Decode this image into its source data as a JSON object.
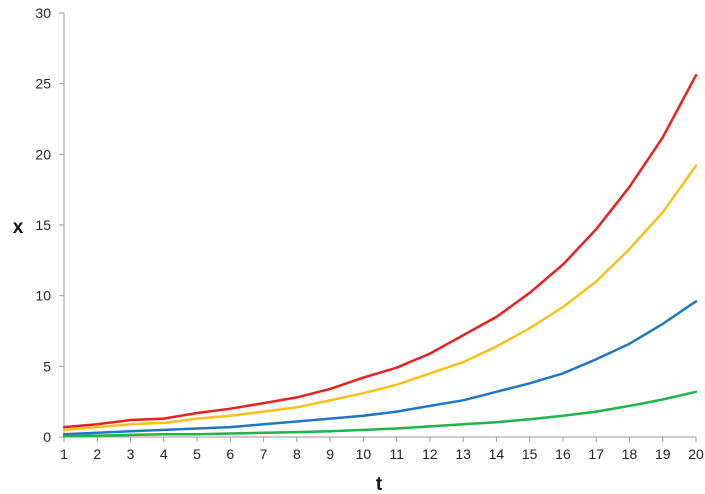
{
  "chart_data": {
    "type": "line",
    "title": "",
    "xlabel": "t",
    "ylabel": "x",
    "x": [
      1,
      2,
      3,
      4,
      5,
      6,
      7,
      8,
      9,
      10,
      11,
      12,
      13,
      14,
      15,
      16,
      17,
      18,
      19,
      20
    ],
    "xlim": [
      1,
      20
    ],
    "ylim": [
      0,
      30
    ],
    "yticks": [
      0,
      5,
      10,
      15,
      20,
      25,
      30
    ],
    "grid": false,
    "legend": "none",
    "series": [
      {
        "color": "#e8211f",
        "values": [
          0.7,
          0.9,
          1.2,
          1.3,
          1.7,
          2.0,
          2.4,
          2.8,
          3.4,
          4.2,
          4.9,
          5.9,
          7.2,
          8.5,
          10.2,
          12.2,
          14.7,
          17.7,
          21.2,
          25.6
        ]
      },
      {
        "color": "#f9c01c",
        "values": [
          0.5,
          0.7,
          0.9,
          1.0,
          1.3,
          1.5,
          1.8,
          2.1,
          2.6,
          3.1,
          3.7,
          4.5,
          5.3,
          6.4,
          7.7,
          9.2,
          11.0,
          13.3,
          15.9,
          19.2
        ]
      },
      {
        "color": "#1f77c4",
        "values": [
          0.2,
          0.3,
          0.4,
          0.5,
          0.6,
          0.7,
          0.9,
          1.1,
          1.3,
          1.5,
          1.8,
          2.2,
          2.6,
          3.2,
          3.8,
          4.5,
          5.5,
          6.6,
          8.0,
          9.6
        ]
      },
      {
        "color": "#1fb34a",
        "values": [
          0.05,
          0.1,
          0.15,
          0.2,
          0.2,
          0.25,
          0.3,
          0.35,
          0.4,
          0.5,
          0.6,
          0.75,
          0.9,
          1.05,
          1.25,
          1.5,
          1.8,
          2.2,
          2.65,
          3.2
        ]
      }
    ]
  }
}
